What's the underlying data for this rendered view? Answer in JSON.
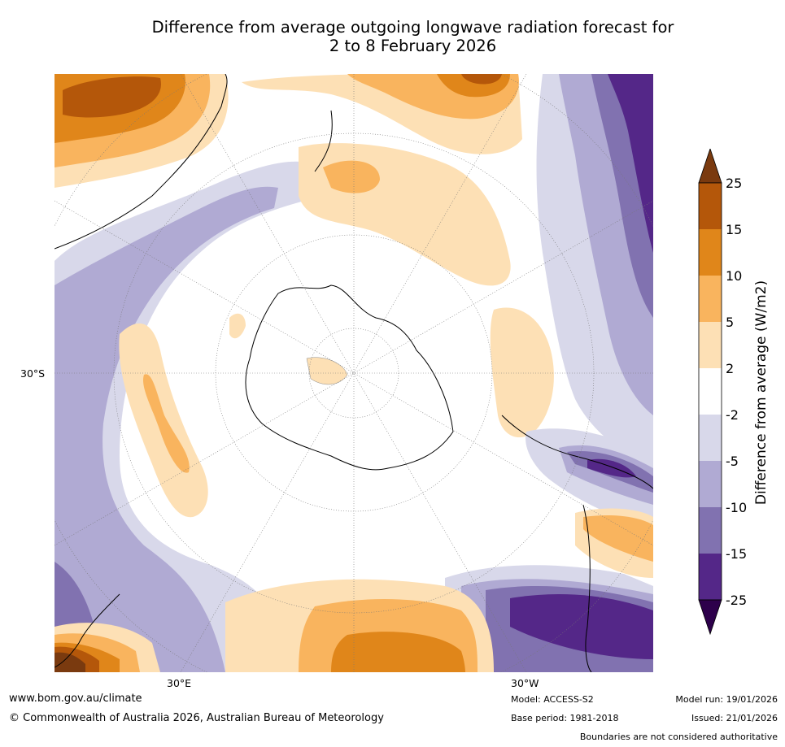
{
  "title": {
    "line1": "Difference from average outgoing longwave radiation forecast for",
    "line2": "2 to 8 February 2026"
  },
  "map": {
    "projection": "south-polar-stereographic",
    "lat_label": "30°S",
    "lon_labels": [
      "30°E",
      "30°W"
    ]
  },
  "colorbar": {
    "label": "Difference from average (W/m2)",
    "ticks": [
      "25",
      "15",
      "10",
      "5",
      "2",
      "-2",
      "-5",
      "-10",
      "-15",
      "-25"
    ],
    "colors": [
      "#7a3a0f",
      "#b4570a",
      "#e0861a",
      "#f9b45e",
      "#fde0b5",
      "#ffffff",
      "#d8d8ea",
      "#b0aad3",
      "#8172b0",
      "#542788",
      "#2d004b"
    ]
  },
  "footer": {
    "website": "www.bom.gov.au/climate",
    "copyright": "© Commonwealth of Australia 2026, Australian Bureau of Meteorology",
    "model": "Model: ACCESS-S2",
    "base_period": "Base period: 1981-2018",
    "model_run": "Model run: 19/01/2026",
    "issued": "Issued: 21/01/2026",
    "disclaimer": "Boundaries are not considered authoritative"
  }
}
